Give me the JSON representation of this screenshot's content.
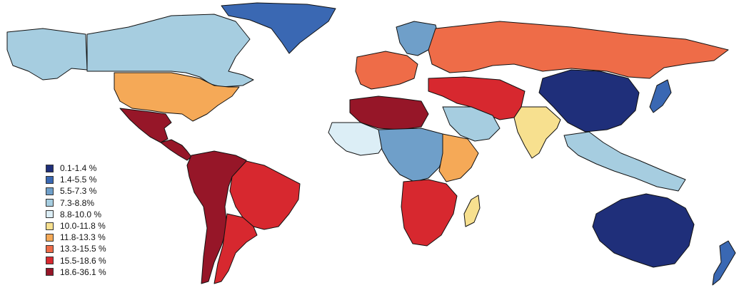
{
  "legend": {
    "items": [
      {
        "label": "0.1-1.4 %",
        "color": "#1f2f7a"
      },
      {
        "label": "1.4-5.5 %",
        "color": "#3a68b3"
      },
      {
        "label": "5.5-7.3 %",
        "color": "#6f9fc9"
      },
      {
        "label": "7.3-8.8%",
        "color": "#a6cde0"
      },
      {
        "label": "8.8-10.0 %",
        "color": "#dceef6"
      },
      {
        "label": "10.0-11.8 %",
        "color": "#f7e08f"
      },
      {
        "label": "11.8-13.3 %",
        "color": "#f5a957"
      },
      {
        "label": "13.3-15.5 %",
        "color": "#ee6c48"
      },
      {
        "label": "15.5-18.6 %",
        "color": "#d7282f"
      },
      {
        "label": "18.6-36.1 %",
        "color": "#961628"
      }
    ]
  },
  "regions": [
    {
      "name": "canada",
      "legend_class": 3
    },
    {
      "name": "alaska",
      "legend_class": 3
    },
    {
      "name": "greenland",
      "legend_class": 1
    },
    {
      "name": "united-states",
      "legend_class": 6
    },
    {
      "name": "mexico",
      "legend_class": 9
    },
    {
      "name": "central-america",
      "legend_class": 9
    },
    {
      "name": "south-america-north",
      "legend_class": 9
    },
    {
      "name": "brazil",
      "legend_class": 8
    },
    {
      "name": "south-america-south",
      "legend_class": 8
    },
    {
      "name": "western-europe",
      "legend_class": 7
    },
    {
      "name": "scandinavia",
      "legend_class": 2
    },
    {
      "name": "russia",
      "legend_class": 7
    },
    {
      "name": "china",
      "legend_class": 0
    },
    {
      "name": "japan",
      "legend_class": 1
    },
    {
      "name": "india",
      "legend_class": 5
    },
    {
      "name": "middle-east",
      "legend_class": 8
    },
    {
      "name": "arabian-peninsula",
      "legend_class": 3
    },
    {
      "name": "north-africa-west",
      "legend_class": 9
    },
    {
      "name": "west-africa",
      "legend_class": 4
    },
    {
      "name": "central-africa",
      "legend_class": 2
    },
    {
      "name": "east-africa",
      "legend_class": 6
    },
    {
      "name": "southern-africa",
      "legend_class": 8
    },
    {
      "name": "madagascar",
      "legend_class": 5
    },
    {
      "name": "southeast-asia",
      "legend_class": 3
    },
    {
      "name": "australia",
      "legend_class": 0
    },
    {
      "name": "new-zealand",
      "legend_class": 1
    }
  ]
}
